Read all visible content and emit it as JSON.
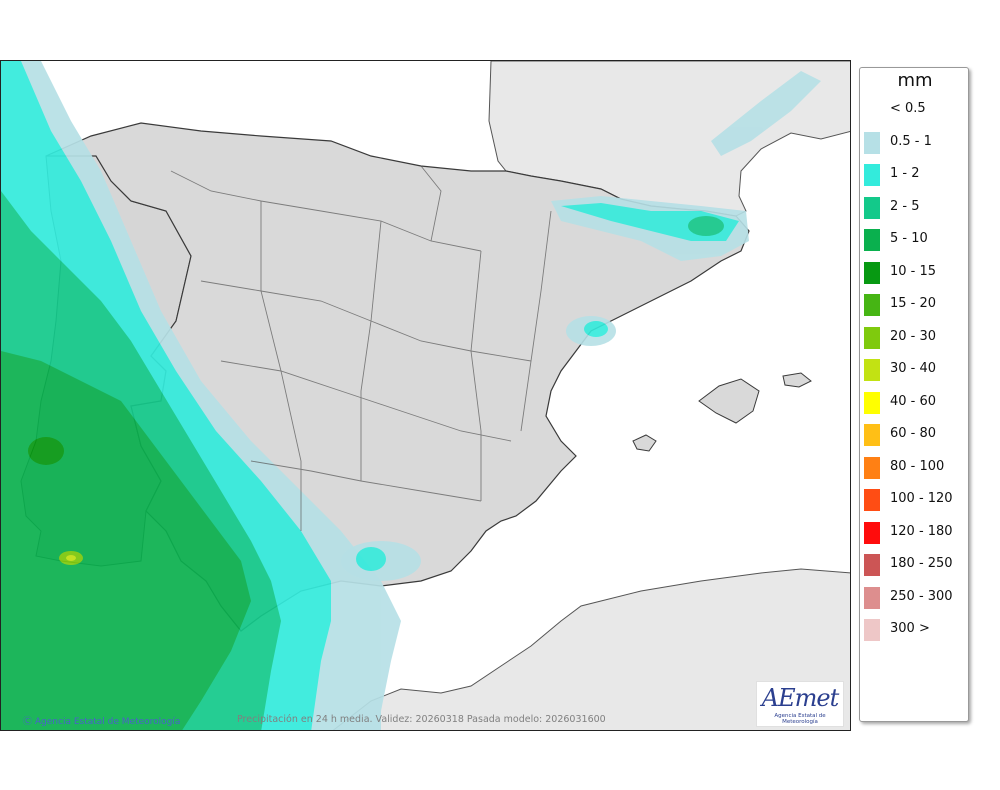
{
  "map": {
    "region": "Península Ibérica y Baleares",
    "variable": "Precipitación en 24 h media",
    "footnote": "Precipitación en 24 h media. Validez: 20260318 Pasada modelo: 2026031600",
    "credit": "Agencia Estatal de Meteorología",
    "logo_text": "AEmet",
    "logo_sub": "Agencia Estatal de Meteorología",
    "colors": {
      "sea": "#ffffff",
      "land_foreign": "#e8e8e8",
      "land_spain": "#d9d9d9",
      "borders": "#3a3a3a"
    }
  },
  "legend": {
    "unit": "mm",
    "items": [
      {
        "label": "< 0.5",
        "color": "#ffffff"
      },
      {
        "label": "0.5 - 1",
        "color": "#b6e0e6"
      },
      {
        "label": "1 - 2",
        "color": "#33ebdc"
      },
      {
        "label": "2 - 5",
        "color": "#13c98a"
      },
      {
        "label": "5 - 10",
        "color": "#0ab04e"
      },
      {
        "label": "10 - 15",
        "color": "#079912"
      },
      {
        "label": "15 - 20",
        "color": "#46b514"
      },
      {
        "label": "20 - 30",
        "color": "#7fca0d"
      },
      {
        "label": "30 - 40",
        "color": "#c2e213"
      },
      {
        "label": "40 - 60",
        "color": "#ffff00"
      },
      {
        "label": "60 - 80",
        "color": "#ffbf16"
      },
      {
        "label": "80 - 100",
        "color": "#ff8014"
      },
      {
        "label": "100 - 120",
        "color": "#ff4d14"
      },
      {
        "label": "120 - 180",
        "color": "#ff0c0c"
      },
      {
        "label": "180 - 250",
        "color": "#cc5555"
      },
      {
        "label": "250 - 300",
        "color": "#dd8e8e"
      },
      {
        "label": "300 >",
        "color": "#eec7c7"
      }
    ]
  }
}
